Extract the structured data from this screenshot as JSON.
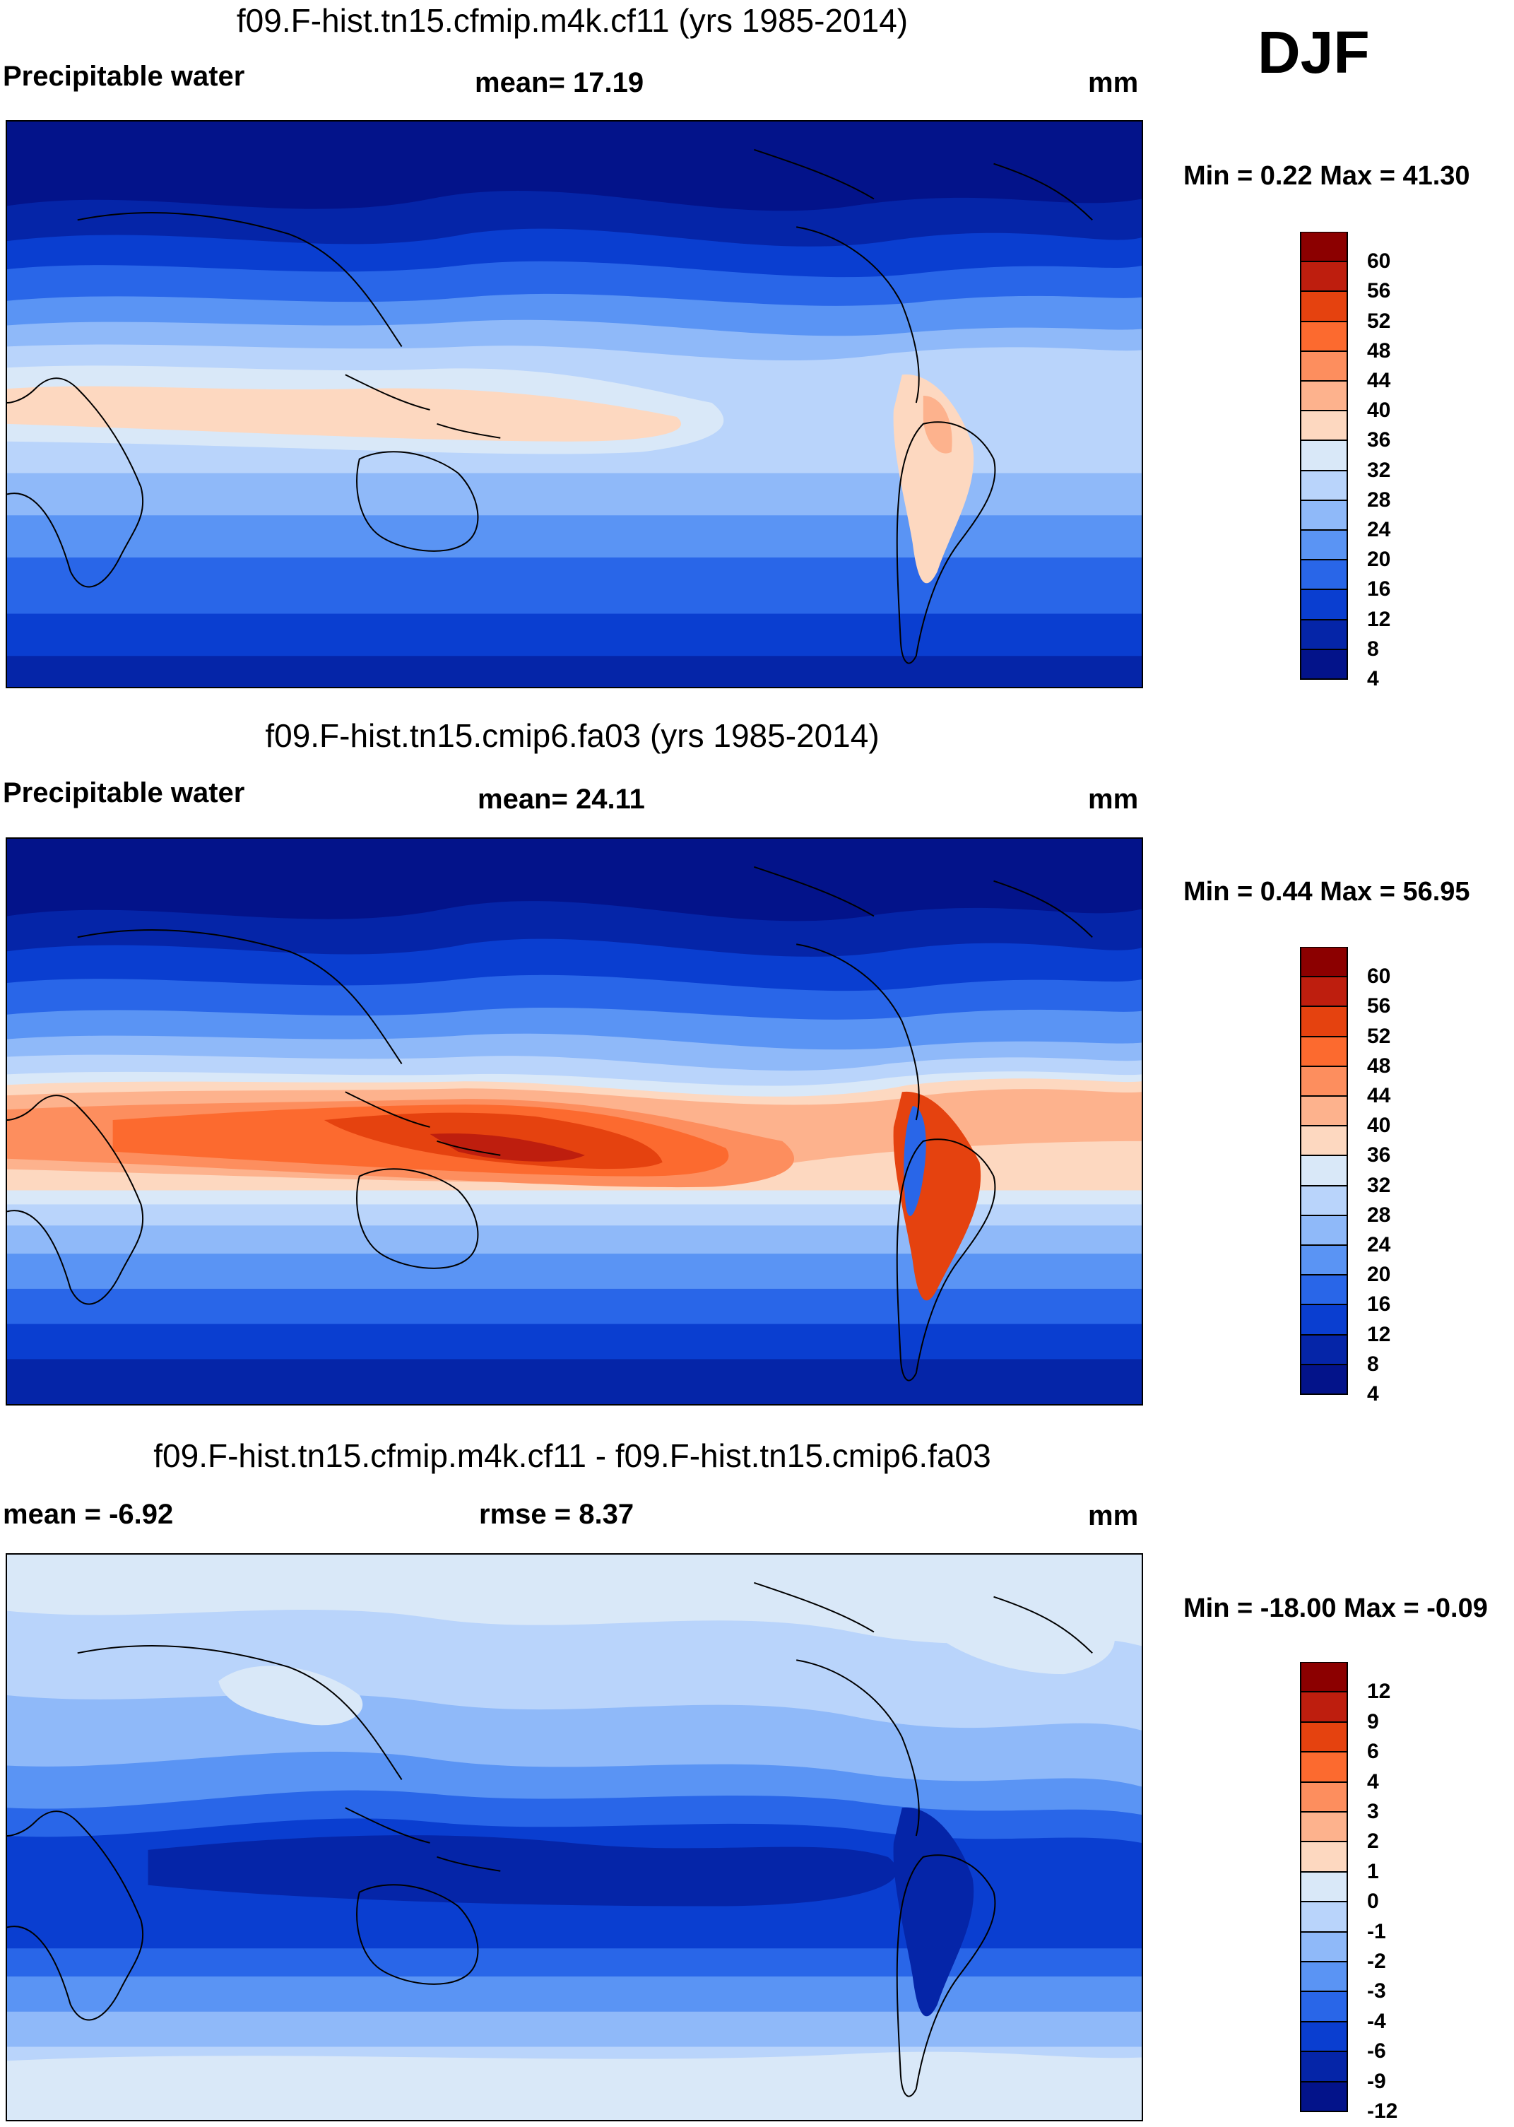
{
  "season": "DJF",
  "panels": [
    {
      "title": "f09.F-hist.tn15.cfmip.m4k.cf11 (yrs 1985-2014)",
      "left_label": "Precipitable water",
      "center_label": "mean=  17.19",
      "units": "mm",
      "minmax": "Min =   0.22 Max =  41.30",
      "colorbar_labels": [
        "60",
        "56",
        "52",
        "48",
        "44",
        "40",
        "36",
        "32",
        "28",
        "24",
        "20",
        "16",
        "12",
        "8",
        "4"
      ],
      "colorbar_colors": [
        "#8c0000",
        "#be1e0e",
        "#e5420f",
        "#fc6a2f",
        "#fd8e5e",
        "#fdb28d",
        "#fdd8c0",
        "#d9e8f8",
        "#b9d4fb",
        "#8fb9f9",
        "#5a94f4",
        "#2966e8",
        "#0a3ed0",
        "#0525a8",
        "#03138a"
      ]
    },
    {
      "title": "f09.F-hist.tn15.cmip6.fa03 (yrs 1985-2014)",
      "left_label": "Precipitable water",
      "center_label": "mean=  24.11",
      "units": "mm",
      "minmax": "Min =   0.44 Max =  56.95",
      "colorbar_labels": [
        "60",
        "56",
        "52",
        "48",
        "44",
        "40",
        "36",
        "32",
        "28",
        "24",
        "20",
        "16",
        "12",
        "8",
        "4"
      ],
      "colorbar_colors": [
        "#8c0000",
        "#be1e0e",
        "#e5420f",
        "#fc6a2f",
        "#fd8e5e",
        "#fdb28d",
        "#fdd8c0",
        "#d9e8f8",
        "#b9d4fb",
        "#8fb9f9",
        "#5a94f4",
        "#2966e8",
        "#0a3ed0",
        "#0525a8",
        "#03138a"
      ]
    },
    {
      "title": "f09.F-hist.tn15.cfmip.m4k.cf11 - f09.F-hist.tn15.cmip6.fa03",
      "left_label": "mean =  -6.92",
      "center_label": "rmse =    8.37",
      "units": "mm",
      "minmax": "Min = -18.00 Max =  -0.09",
      "colorbar_labels": [
        "12",
        "9",
        "6",
        "4",
        "3",
        "2",
        "1",
        "0",
        "-1",
        "-2",
        "-3",
        "-4",
        "-6",
        "-9",
        "-12"
      ],
      "colorbar_colors": [
        "#8c0000",
        "#be1e0e",
        "#e5420f",
        "#fc6a2f",
        "#fd8e5e",
        "#fdb28d",
        "#fdd8c0",
        "#d9e8f8",
        "#b9d4fb",
        "#8fb9f9",
        "#5a94f4",
        "#2966e8",
        "#0a3ed0",
        "#0525a8",
        "#03138a"
      ]
    }
  ]
}
